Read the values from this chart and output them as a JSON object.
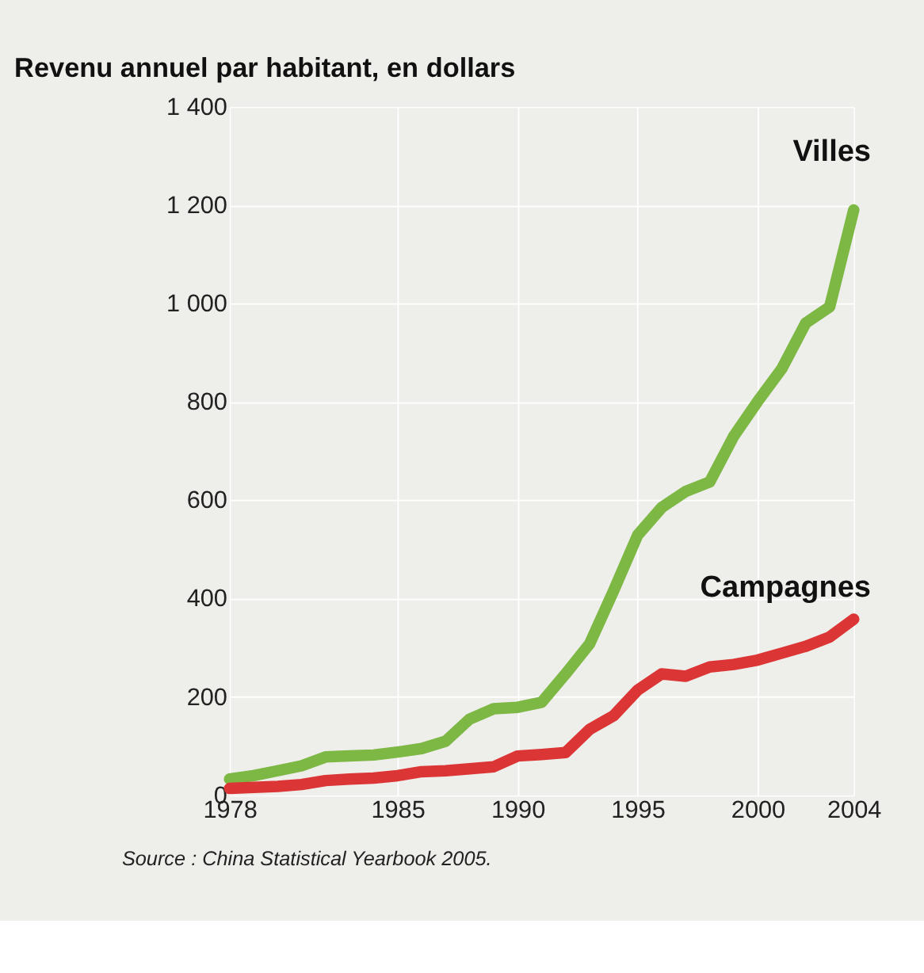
{
  "chart_data": {
    "type": "line",
    "title": "Revenu annuel par habitant, en dollars",
    "x": [
      1978,
      1979,
      1980,
      1981,
      1982,
      1983,
      1984,
      1985,
      1986,
      1987,
      1988,
      1989,
      1990,
      1991,
      1992,
      1993,
      1994,
      1995,
      1996,
      1997,
      1998,
      1999,
      2000,
      2001,
      2002,
      2003,
      2004
    ],
    "series": [
      {
        "name": "Villes",
        "color": "#7db744",
        "values": [
          33,
          40,
          50,
          60,
          78,
          80,
          82,
          88,
          95,
          110,
          155,
          176,
          179,
          189,
          247,
          308,
          416,
          529,
          585,
          618,
          637,
          730,
          801,
          867,
          960,
          993,
          1190
        ]
      },
      {
        "name": "Campagnes",
        "color": "#dc3535",
        "values": [
          14,
          16,
          18,
          22,
          30,
          33,
          35,
          40,
          48,
          50,
          54,
          58,
          80,
          83,
          87,
          134,
          162,
          214,
          247,
          242,
          261,
          266,
          275,
          289,
          303,
          322,
          358
        ]
      }
    ],
    "xlim": [
      1978,
      2004
    ],
    "xticks": [
      1978,
      1985,
      1990,
      1995,
      2000,
      2004
    ],
    "ylim": [
      0,
      1400
    ],
    "yticks": [
      0,
      200,
      400,
      600,
      800,
      {
        "value": 1000,
        "label": "1 000"
      },
      {
        "value": 1200,
        "label": "1 200"
      },
      {
        "value": 1400,
        "label": "1 400"
      }
    ],
    "grid": true,
    "marker": "none",
    "line_style": "solid",
    "annotations": [
      "Source : China Statistical Yearbook 2005."
    ]
  }
}
